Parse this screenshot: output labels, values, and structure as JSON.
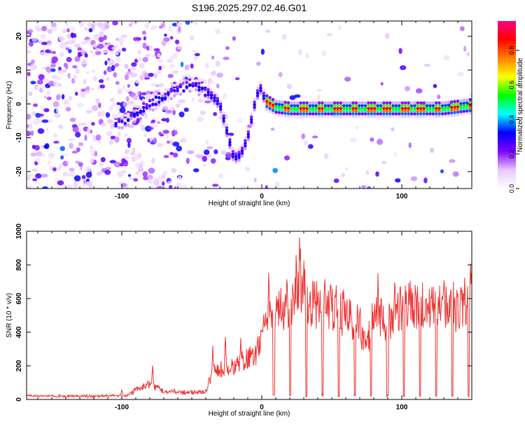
{
  "title": "S196.2025.297.02.46.G01",
  "chart_data": [
    {
      "type": "heatmap",
      "xlabel": "Height of straight line (km)",
      "ylabel": "Frequency (Hz)",
      "xlim": [
        -168,
        150
      ],
      "ylim": [
        -25,
        24.5
      ],
      "xticks": [
        -100,
        0,
        100
      ],
      "yticks": [
        -20,
        -10,
        0,
        10,
        20
      ],
      "colorbar": {
        "label": "Normalized spectral amplitude",
        "range": [
          0,
          0.97
        ],
        "ticks": [
          0.0,
          0.2,
          0.4,
          0.6,
          0.8
        ],
        "tick_labels": [
          "0.0",
          "0.2",
          "0.4",
          "0.6",
          "0.8"
        ],
        "colors": [
          "#ffffff",
          "#e8c8ff",
          "#8000ff",
          "#0000ff",
          "#00ffff",
          "#00ff00",
          "#ffff00",
          "#ff8000",
          "#ff0000",
          "#ff0080"
        ]
      },
      "ridge": {
        "x": [
          -100,
          -90,
          -80,
          -70,
          -60,
          -50,
          -40,
          -30,
          -25,
          -20,
          -15,
          -10,
          -5,
          -3,
          0,
          2,
          10,
          20,
          50,
          100,
          130,
          150
        ],
        "freq": [
          -5,
          -3,
          0,
          2,
          5,
          6,
          4,
          0,
          -8,
          -16,
          -15,
          -10,
          0,
          3,
          5,
          1,
          -1,
          -1.5,
          -1.5,
          -1.5,
          -1.5,
          -0.5
        ]
      }
    },
    {
      "type": "line",
      "xlabel": "Height of straight line (km)",
      "ylabel": "SNR (10 * v/v)",
      "xlim": [
        -168,
        150
      ],
      "ylim": [
        0,
        1000
      ],
      "xticks": [
        -100,
        0,
        100
      ],
      "yticks": [
        0,
        200,
        400,
        600,
        800,
        1000
      ],
      "color": "#ee3333",
      "series": [
        {
          "name": "SNR",
          "x": [
            -168,
            -120,
            -95,
            -90,
            -80,
            -70,
            -50,
            -40,
            -35,
            -30,
            -20,
            -10,
            -5,
            0,
            5,
            10,
            20,
            25,
            28,
            30,
            40,
            50,
            60,
            70,
            75,
            80,
            90,
            100,
            110,
            120,
            130,
            140,
            145,
            150
          ],
          "level": [
            20,
            20,
            25,
            60,
            90,
            50,
            40,
            45,
            170,
            180,
            190,
            250,
            250,
            370,
            480,
            520,
            550,
            700,
            720,
            620,
            550,
            560,
            500,
            450,
            300,
            520,
            450,
            560,
            560,
            540,
            560,
            550,
            570,
            600
          ],
          "peaks": [
            [
              -100,
              60
            ],
            [
              -78,
              210
            ],
            [
              -35,
              320
            ],
            [
              -26,
              400
            ],
            [
              -15,
              380
            ],
            [
              5,
              810
            ],
            [
              18,
              800
            ],
            [
              27,
              1000
            ],
            [
              30,
              890
            ],
            [
              45,
              800
            ],
            [
              55,
              750
            ],
            [
              83,
              780
            ],
            [
              95,
              780
            ],
            [
              110,
              680
            ],
            [
              145,
              780
            ],
            [
              149,
              870
            ]
          ]
        }
      ]
    }
  ]
}
